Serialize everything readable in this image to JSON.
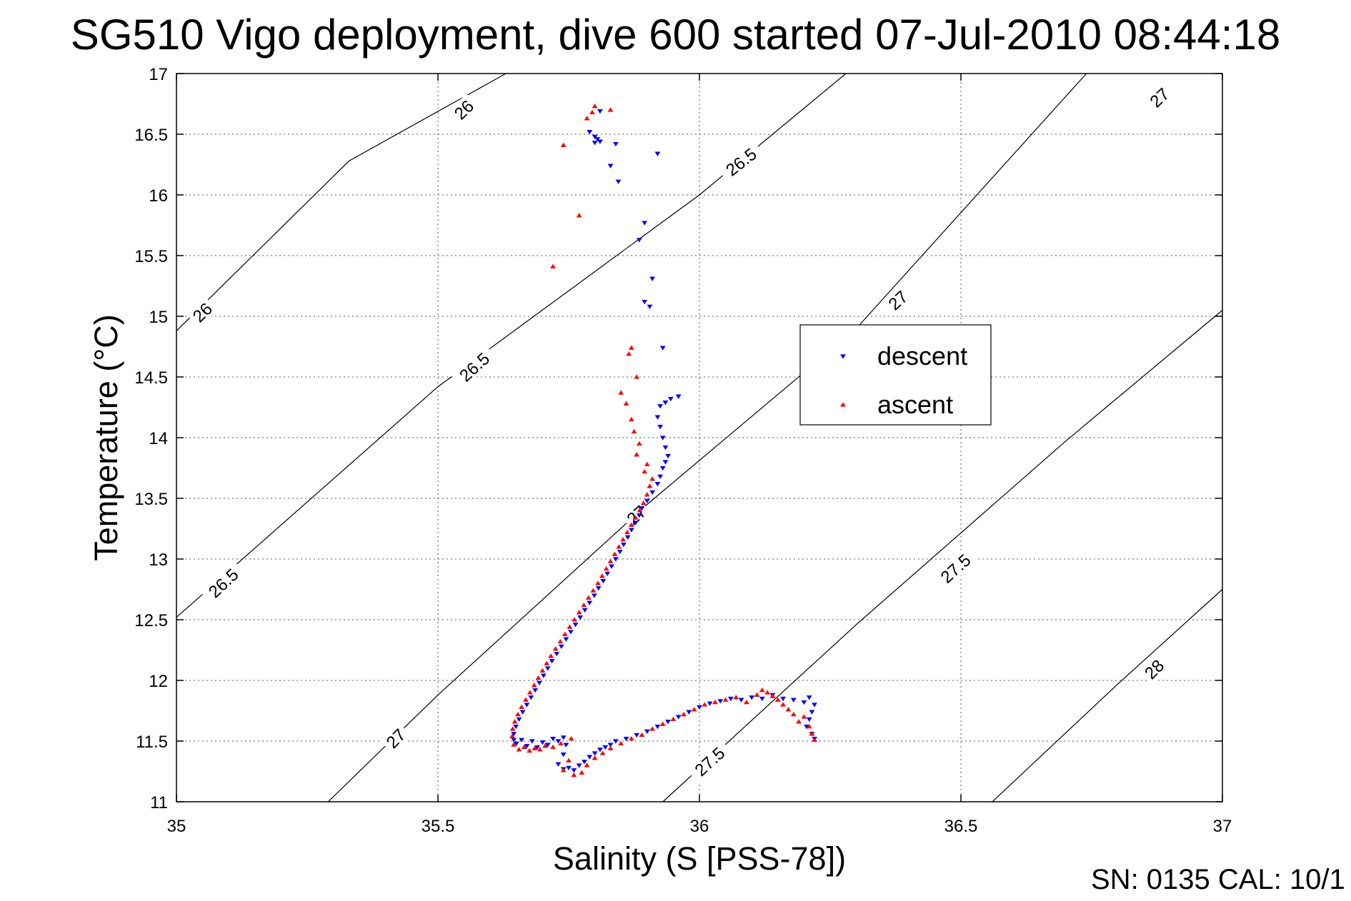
{
  "chart_data": {
    "type": "scatter",
    "title": "SG510 Vigo deployment, dive 600 started 07-Jul-2010 08:44:18",
    "xlabel": "Salinity (S [PSS-78])",
    "ylabel": "Temperature (°C)",
    "xlim": [
      35,
      37
    ],
    "ylim": [
      11,
      17
    ],
    "xticks": [
      "35",
      "35.5",
      "36",
      "36.5",
      "37"
    ],
    "yticks": [
      "11",
      "11.5",
      "12",
      "12.5",
      "13",
      "13.5",
      "14",
      "14.5",
      "15",
      "15.5",
      "16",
      "16.5",
      "17"
    ],
    "grid": true,
    "legend_position": "center-right",
    "footer": "SN: 0135  CAL: 10/1",
    "density_contours": [
      {
        "label": "26",
        "points": [
          [
            35.0,
            14.88
          ],
          [
            35.33,
            16.28
          ],
          [
            35.63,
            17.0
          ]
        ]
      },
      {
        "label": "26.5",
        "points": [
          [
            35.0,
            12.52
          ],
          [
            35.5,
            14.42
          ],
          [
            36.0,
            16.0
          ],
          [
            36.28,
            17.0
          ]
        ]
      },
      {
        "label": "27",
        "points": [
          [
            35.29,
            11.0
          ],
          [
            35.5,
            11.88
          ],
          [
            35.9,
            13.45
          ],
          [
            36.3,
            14.9
          ],
          [
            36.74,
            17.0
          ]
        ]
      },
      {
        "label": "27.5",
        "points": [
          [
            35.93,
            11.0
          ],
          [
            36.3,
            12.46
          ],
          [
            36.7,
            13.97
          ],
          [
            37.0,
            15.05
          ]
        ]
      },
      {
        "label": "28",
        "points": [
          [
            36.56,
            11.0
          ],
          [
            36.8,
            11.97
          ],
          [
            37.0,
            12.75
          ]
        ]
      }
    ],
    "contour_labels": [
      {
        "text": "26",
        "x": 35.55,
        "y": 16.7,
        "angle": -44
      },
      {
        "text": "26",
        "x": 35.05,
        "y": 15.03,
        "angle": -44
      },
      {
        "text": "26.5",
        "x": 36.08,
        "y": 16.27,
        "angle": -38
      },
      {
        "text": "26.5",
        "x": 35.57,
        "y": 14.58,
        "angle": -42
      },
      {
        "text": "26.5",
        "x": 35.09,
        "y": 12.8,
        "angle": -43
      },
      {
        "text": "27",
        "x": 36.88,
        "y": 16.8,
        "angle": -43
      },
      {
        "text": "27",
        "x": 36.38,
        "y": 15.13,
        "angle": -42
      },
      {
        "text": "27",
        "x": 35.88,
        "y": 13.36,
        "angle": -42
      },
      {
        "text": "27",
        "x": 35.42,
        "y": 11.52,
        "angle": -45
      },
      {
        "text": "27.5",
        "x": 36.49,
        "y": 12.92,
        "angle": -42
      },
      {
        "text": "27.5",
        "x": 36.02,
        "y": 11.33,
        "angle": -42
      },
      {
        "text": "28",
        "x": 36.87,
        "y": 12.09,
        "angle": -45
      }
    ],
    "series": [
      {
        "name": "descent",
        "color": "#0000ff",
        "marker": "triangle-down",
        "points": [
          [
            35.81,
            16.69
          ],
          [
            35.79,
            16.52
          ],
          [
            35.8,
            16.48
          ],
          [
            35.805,
            16.46
          ],
          [
            35.81,
            16.44
          ],
          [
            35.8,
            16.43
          ],
          [
            35.84,
            16.42
          ],
          [
            35.92,
            16.34
          ],
          [
            35.83,
            16.24
          ],
          [
            35.845,
            16.11
          ],
          [
            35.895,
            15.77
          ],
          [
            35.885,
            15.63
          ],
          [
            35.91,
            15.31
          ],
          [
            35.895,
            15.12
          ],
          [
            35.905,
            15.08
          ],
          [
            35.93,
            14.74
          ],
          [
            35.96,
            14.34
          ],
          [
            35.945,
            14.32
          ],
          [
            35.935,
            14.29
          ],
          [
            35.925,
            14.26
          ],
          [
            35.92,
            14.17
          ],
          [
            35.925,
            14.09
          ],
          [
            35.93,
            14.0
          ],
          [
            35.935,
            13.92
          ],
          [
            35.94,
            13.85
          ],
          [
            35.935,
            13.8
          ],
          [
            35.93,
            13.75
          ],
          [
            35.925,
            13.68
          ],
          [
            35.92,
            13.62
          ],
          [
            35.91,
            13.55
          ],
          [
            35.9,
            13.48
          ],
          [
            35.89,
            13.42
          ],
          [
            35.885,
            13.36
          ],
          [
            35.878,
            13.3
          ],
          [
            35.87,
            13.24
          ],
          [
            35.863,
            13.18
          ],
          [
            35.855,
            13.12
          ],
          [
            35.848,
            13.06
          ],
          [
            35.84,
            13.0
          ],
          [
            35.832,
            12.94
          ],
          [
            35.824,
            12.88
          ],
          [
            35.816,
            12.82
          ],
          [
            35.807,
            12.76
          ],
          [
            35.799,
            12.7
          ],
          [
            35.79,
            12.64
          ],
          [
            35.781,
            12.58
          ],
          [
            35.772,
            12.52
          ],
          [
            35.763,
            12.46
          ],
          [
            35.754,
            12.4
          ],
          [
            35.745,
            12.34
          ],
          [
            35.736,
            12.28
          ],
          [
            35.727,
            12.22
          ],
          [
            35.718,
            12.16
          ],
          [
            35.71,
            12.1
          ],
          [
            35.702,
            12.04
          ],
          [
            35.694,
            11.98
          ],
          [
            35.686,
            11.92
          ],
          [
            35.678,
            11.86
          ],
          [
            35.67,
            11.8
          ],
          [
            35.662,
            11.74
          ],
          [
            35.655,
            11.68
          ],
          [
            35.649,
            11.62
          ],
          [
            35.645,
            11.56
          ],
          [
            35.645,
            11.51
          ],
          [
            35.65,
            11.48
          ],
          [
            35.66,
            11.51
          ],
          [
            35.67,
            11.46
          ],
          [
            35.68,
            11.5
          ],
          [
            35.69,
            11.45
          ],
          [
            35.7,
            11.49
          ],
          [
            35.71,
            11.47
          ],
          [
            35.72,
            11.52
          ],
          [
            35.73,
            11.5
          ],
          [
            35.74,
            11.53
          ],
          [
            35.745,
            11.47
          ],
          [
            35.74,
            11.39
          ],
          [
            35.73,
            11.31
          ],
          [
            35.74,
            11.27
          ],
          [
            35.75,
            11.28
          ],
          [
            35.76,
            11.26
          ],
          [
            35.77,
            11.3
          ],
          [
            35.78,
            11.33
          ],
          [
            35.79,
            11.37
          ],
          [
            35.8,
            11.4
          ],
          [
            35.81,
            11.43
          ],
          [
            35.82,
            11.45
          ],
          [
            35.83,
            11.47
          ],
          [
            35.84,
            11.5
          ],
          [
            35.86,
            11.52
          ],
          [
            35.88,
            11.55
          ],
          [
            35.9,
            11.58
          ],
          [
            35.92,
            11.62
          ],
          [
            35.94,
            11.66
          ],
          [
            35.96,
            11.7
          ],
          [
            35.98,
            11.74
          ],
          [
            36.0,
            11.78
          ],
          [
            36.02,
            11.81
          ],
          [
            36.04,
            11.83
          ],
          [
            36.06,
            11.85
          ],
          [
            36.08,
            11.84
          ],
          [
            36.1,
            11.86
          ],
          [
            36.12,
            11.85
          ],
          [
            36.14,
            11.88
          ],
          [
            36.16,
            11.85
          ],
          [
            36.18,
            11.84
          ],
          [
            36.2,
            11.82
          ],
          [
            36.21,
            11.86
          ],
          [
            36.22,
            11.8
          ],
          [
            36.215,
            11.74
          ],
          [
            36.21,
            11.68
          ],
          [
            36.205,
            11.62
          ],
          [
            36.215,
            11.56
          ],
          [
            36.22,
            11.52
          ]
        ]
      },
      {
        "name": "ascent",
        "color": "#ff0000",
        "marker": "triangle-up",
        "points": [
          [
            35.8,
            16.73
          ],
          [
            35.795,
            16.68
          ],
          [
            35.785,
            16.63
          ],
          [
            35.83,
            16.7
          ],
          [
            35.74,
            16.41
          ],
          [
            35.77,
            15.83
          ],
          [
            35.72,
            15.41
          ],
          [
            35.87,
            14.74
          ],
          [
            35.865,
            14.69
          ],
          [
            35.85,
            14.37
          ],
          [
            35.88,
            14.5
          ],
          [
            35.86,
            14.28
          ],
          [
            35.87,
            14.15
          ],
          [
            35.875,
            14.05
          ],
          [
            35.885,
            13.95
          ],
          [
            35.88,
            13.86
          ],
          [
            35.9,
            13.78
          ],
          [
            35.895,
            13.72
          ],
          [
            35.91,
            13.66
          ],
          [
            35.905,
            13.6
          ],
          [
            35.9,
            13.53
          ],
          [
            35.893,
            13.46
          ],
          [
            35.886,
            13.4
          ],
          [
            35.878,
            13.34
          ],
          [
            35.87,
            13.28
          ],
          [
            35.862,
            13.22
          ],
          [
            35.854,
            13.16
          ],
          [
            35.846,
            13.1
          ],
          [
            35.838,
            13.04
          ],
          [
            35.83,
            12.98
          ],
          [
            35.822,
            12.92
          ],
          [
            35.814,
            12.86
          ],
          [
            35.806,
            12.8
          ],
          [
            35.797,
            12.74
          ],
          [
            35.788,
            12.68
          ],
          [
            35.779,
            12.62
          ],
          [
            35.77,
            12.56
          ],
          [
            35.761,
            12.5
          ],
          [
            35.752,
            12.44
          ],
          [
            35.743,
            12.38
          ],
          [
            35.734,
            12.32
          ],
          [
            35.725,
            12.26
          ],
          [
            35.716,
            12.2
          ],
          [
            35.708,
            12.14
          ],
          [
            35.7,
            12.08
          ],
          [
            35.692,
            12.02
          ],
          [
            35.684,
            11.96
          ],
          [
            35.676,
            11.9
          ],
          [
            35.668,
            11.84
          ],
          [
            35.66,
            11.78
          ],
          [
            35.653,
            11.72
          ],
          [
            35.647,
            11.66
          ],
          [
            35.643,
            11.6
          ],
          [
            35.642,
            11.54
          ],
          [
            35.645,
            11.47
          ],
          [
            35.655,
            11.43
          ],
          [
            35.665,
            11.45
          ],
          [
            35.675,
            11.42
          ],
          [
            35.685,
            11.44
          ],
          [
            35.695,
            11.43
          ],
          [
            35.705,
            11.46
          ],
          [
            35.72,
            11.45
          ],
          [
            35.735,
            11.48
          ],
          [
            35.755,
            11.52
          ],
          [
            35.75,
            11.34
          ],
          [
            35.74,
            11.26
          ],
          [
            35.76,
            11.22
          ],
          [
            35.775,
            11.24
          ],
          [
            35.785,
            11.3
          ],
          [
            35.8,
            11.36
          ],
          [
            35.815,
            11.4
          ],
          [
            35.83,
            11.44
          ],
          [
            35.85,
            11.48
          ],
          [
            35.87,
            11.52
          ],
          [
            35.89,
            11.55
          ],
          [
            35.91,
            11.6
          ],
          [
            35.93,
            11.64
          ],
          [
            35.95,
            11.68
          ],
          [
            35.97,
            11.72
          ],
          [
            35.99,
            11.76
          ],
          [
            36.01,
            11.8
          ],
          [
            36.03,
            11.82
          ],
          [
            36.05,
            11.84
          ],
          [
            36.07,
            11.86
          ],
          [
            36.09,
            11.82
          ],
          [
            36.11,
            11.88
          ],
          [
            36.12,
            11.92
          ],
          [
            36.13,
            11.9
          ],
          [
            36.14,
            11.87
          ],
          [
            36.15,
            11.84
          ],
          [
            36.16,
            11.8
          ],
          [
            36.17,
            11.76
          ],
          [
            36.18,
            11.72
          ],
          [
            36.19,
            11.66
          ],
          [
            36.2,
            11.7
          ],
          [
            36.21,
            11.62
          ],
          [
            36.215,
            11.56
          ],
          [
            36.22,
            11.51
          ]
        ]
      }
    ]
  }
}
